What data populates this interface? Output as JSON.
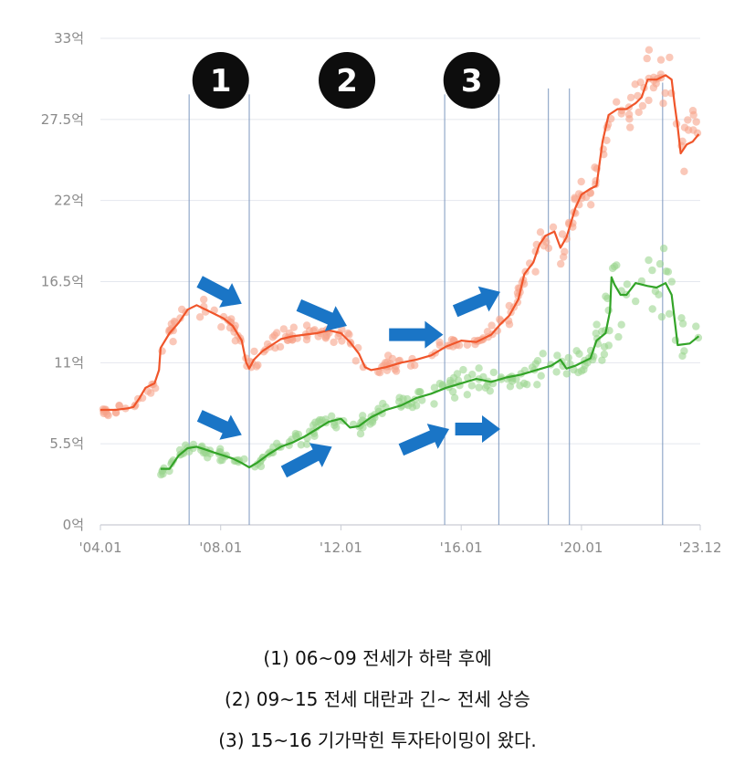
{
  "chart_data": {
    "type": "line",
    "x_unit": "year",
    "x_range": [
      2004.0,
      2023.95
    ],
    "y_range": [
      0,
      33
    ],
    "y_ticks": [
      {
        "value": 0,
        "label": "0억"
      },
      {
        "value": 5.5,
        "label": "5.5억"
      },
      {
        "value": 11,
        "label": "11억"
      },
      {
        "value": 16.5,
        "label": "16.5억"
      },
      {
        "value": 22,
        "label": "22억"
      },
      {
        "value": 27.5,
        "label": "27.5억"
      },
      {
        "value": 33,
        "label": "33억"
      }
    ],
    "x_ticks": [
      {
        "value": 2004.0,
        "label": "'04.01"
      },
      {
        "value": 2008.0,
        "label": "'08.01"
      },
      {
        "value": 2012.0,
        "label": "'12.01"
      },
      {
        "value": 2016.0,
        "label": "'16.01"
      },
      {
        "value": 2020.0,
        "label": "'20.01"
      },
      {
        "value": 2023.95,
        "label": "'23.12"
      }
    ],
    "grid": true,
    "series": [
      {
        "color": "#f0552a",
        "scatter_color": "#f7a48a",
        "points": [
          [
            2004.0,
            7.8
          ],
          [
            2004.5,
            7.8
          ],
          [
            2004.9,
            7.9
          ],
          [
            2005.1,
            8.0
          ],
          [
            2005.3,
            8.6
          ],
          [
            2005.5,
            9.3
          ],
          [
            2005.8,
            9.6
          ],
          [
            2005.95,
            10.5
          ],
          [
            2006.0,
            12.0
          ],
          [
            2006.3,
            13.0
          ],
          [
            2006.6,
            13.7
          ],
          [
            2006.9,
            14.6
          ],
          [
            2007.2,
            14.9
          ],
          [
            2007.5,
            14.6
          ],
          [
            2007.8,
            14.3
          ],
          [
            2008.1,
            14.0
          ],
          [
            2008.4,
            13.5
          ],
          [
            2008.7,
            12.5
          ],
          [
            2008.85,
            11.0
          ],
          [
            2008.95,
            10.6
          ],
          [
            2009.1,
            11.2
          ],
          [
            2009.4,
            11.8
          ],
          [
            2009.7,
            12.2
          ],
          [
            2010.0,
            12.6
          ],
          [
            2010.4,
            12.8
          ],
          [
            2010.8,
            12.9
          ],
          [
            2011.2,
            13.0
          ],
          [
            2011.6,
            13.2
          ],
          [
            2012.0,
            13.0
          ],
          [
            2012.3,
            12.4
          ],
          [
            2012.6,
            11.6
          ],
          [
            2012.8,
            10.7
          ],
          [
            2013.0,
            10.5
          ],
          [
            2013.5,
            10.7
          ],
          [
            2014.0,
            11.0
          ],
          [
            2014.5,
            11.2
          ],
          [
            2015.0,
            11.5
          ],
          [
            2015.5,
            12.1
          ],
          [
            2016.0,
            12.5
          ],
          [
            2016.5,
            12.4
          ],
          [
            2017.0,
            12.9
          ],
          [
            2017.3,
            13.6
          ],
          [
            2017.6,
            14.2
          ],
          [
            2017.9,
            15.3
          ],
          [
            2018.1,
            17.0
          ],
          [
            2018.4,
            17.8
          ],
          [
            2018.6,
            19.0
          ],
          [
            2018.8,
            19.6
          ],
          [
            2019.1,
            19.9
          ],
          [
            2019.3,
            18.8
          ],
          [
            2019.5,
            19.5
          ],
          [
            2019.8,
            21.5
          ],
          [
            2020.0,
            22.4
          ],
          [
            2020.3,
            22.8
          ],
          [
            2020.5,
            23.0
          ],
          [
            2020.7,
            26.0
          ],
          [
            2020.9,
            27.8
          ],
          [
            2021.2,
            28.2
          ],
          [
            2021.5,
            28.2
          ],
          [
            2021.8,
            28.6
          ],
          [
            2022.0,
            29.0
          ],
          [
            2022.2,
            30.2
          ],
          [
            2022.5,
            30.2
          ],
          [
            2022.8,
            30.5
          ],
          [
            2023.0,
            30.2
          ],
          [
            2023.1,
            28.5
          ],
          [
            2023.2,
            27.0
          ],
          [
            2023.3,
            25.2
          ],
          [
            2023.5,
            25.8
          ],
          [
            2023.7,
            26.0
          ],
          [
            2023.9,
            26.5
          ]
        ]
      },
      {
        "color": "#33a428",
        "scatter_color": "#9bd68f",
        "points": [
          [
            2006.0,
            3.8
          ],
          [
            2006.3,
            3.8
          ],
          [
            2006.6,
            4.7
          ],
          [
            2006.9,
            5.2
          ],
          [
            2007.2,
            5.3
          ],
          [
            2007.5,
            5.1
          ],
          [
            2007.8,
            4.9
          ],
          [
            2008.1,
            4.7
          ],
          [
            2008.4,
            4.5
          ],
          [
            2008.7,
            4.2
          ],
          [
            2008.95,
            3.9
          ],
          [
            2009.2,
            4.2
          ],
          [
            2009.6,
            4.8
          ],
          [
            2010.0,
            5.3
          ],
          [
            2010.4,
            5.6
          ],
          [
            2010.8,
            6.0
          ],
          [
            2011.2,
            6.5
          ],
          [
            2011.6,
            7.0
          ],
          [
            2012.0,
            7.2
          ],
          [
            2012.3,
            6.6
          ],
          [
            2012.6,
            6.7
          ],
          [
            2013.0,
            7.3
          ],
          [
            2013.5,
            7.8
          ],
          [
            2014.0,
            8.1
          ],
          [
            2014.5,
            8.6
          ],
          [
            2015.0,
            8.9
          ],
          [
            2015.5,
            9.3
          ],
          [
            2016.0,
            9.6
          ],
          [
            2016.5,
            9.9
          ],
          [
            2017.0,
            9.7
          ],
          [
            2017.5,
            10.0
          ],
          [
            2018.0,
            10.2
          ],
          [
            2018.5,
            10.5
          ],
          [
            2019.0,
            10.8
          ],
          [
            2019.3,
            11.2
          ],
          [
            2019.5,
            10.6
          ],
          [
            2019.8,
            10.8
          ],
          [
            2020.0,
            11.0
          ],
          [
            2020.3,
            11.3
          ],
          [
            2020.5,
            12.5
          ],
          [
            2020.8,
            13.0
          ],
          [
            2020.95,
            14.5
          ],
          [
            2021.0,
            16.8
          ],
          [
            2021.1,
            16.3
          ],
          [
            2021.3,
            15.6
          ],
          [
            2021.5,
            15.6
          ],
          [
            2021.8,
            16.4
          ],
          [
            2022.2,
            16.2
          ],
          [
            2022.5,
            16.1
          ],
          [
            2022.8,
            16.4
          ],
          [
            2023.0,
            15.6
          ],
          [
            2023.2,
            12.2
          ],
          [
            2023.6,
            12.3
          ],
          [
            2023.9,
            12.8
          ]
        ]
      }
    ],
    "vertical_lines": [
      2006.95,
      2008.95,
      2015.45,
      2017.25,
      2018.9,
      2019.6,
      2022.7
    ],
    "markers": [
      {
        "label": "1",
        "x": 2008.0
      },
      {
        "label": "2",
        "x": 2012.2
      },
      {
        "label": "3",
        "x": 2016.35
      }
    ],
    "arrows": [
      {
        "from": [
          2007.3,
          16.5
        ],
        "to": [
          2008.7,
          15.0
        ]
      },
      {
        "from": [
          2010.6,
          14.9
        ],
        "to": [
          2012.2,
          13.5
        ]
      },
      {
        "from": [
          2013.6,
          12.9
        ],
        "to": [
          2015.4,
          12.9
        ]
      },
      {
        "from": [
          2015.8,
          14.5
        ],
        "to": [
          2017.3,
          15.8
        ]
      },
      {
        "from": [
          2007.3,
          7.4
        ],
        "to": [
          2008.7,
          6.1
        ]
      },
      {
        "from": [
          2010.1,
          3.6
        ],
        "to": [
          2011.7,
          5.3
        ]
      },
      {
        "from": [
          2014.0,
          5.1
        ],
        "to": [
          2015.6,
          6.5
        ]
      },
      {
        "from": [
          2015.8,
          6.5
        ],
        "to": [
          2017.3,
          6.5
        ]
      }
    ]
  },
  "captions": [
    "(1) 06~09 전세가 하락 후에",
    "(2) 09~15 전세 대란과 긴~ 전세 상승",
    "(3) 15~16 기가막힌 투자타이밍이 왔다."
  ]
}
